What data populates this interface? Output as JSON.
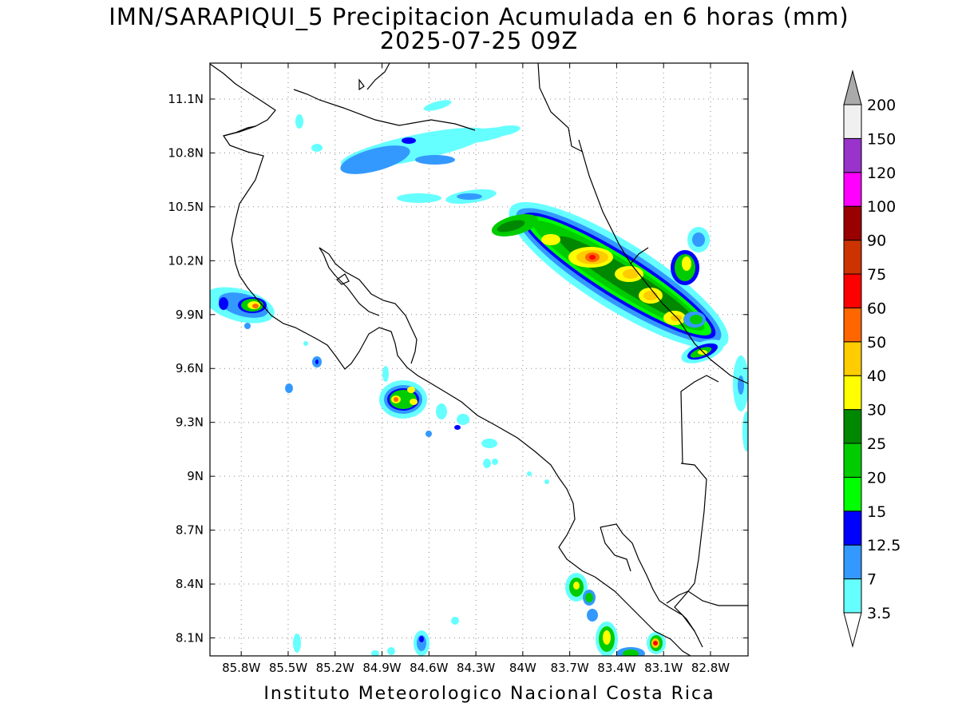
{
  "title_line1": "IMN/SARAPIQUI_5 Precipitacion Acumulada en 6 horas (mm)",
  "title_line2": "2025-07-25 09Z",
  "footer": "Instituto Meteorologico Nacional Costa Rica",
  "map": {
    "lon_range": [
      -86.0,
      -82.56
    ],
    "lat_range": [
      8.0,
      11.3
    ],
    "lat_ticks": [
      {
        "value": 11.1,
        "label": "11.1N"
      },
      {
        "value": 10.8,
        "label": "10.8N"
      },
      {
        "value": 10.5,
        "label": "10.5N"
      },
      {
        "value": 10.2,
        "label": "10.2N"
      },
      {
        "value": 9.9,
        "label": "9.9N"
      },
      {
        "value": 9.6,
        "label": "9.6N"
      },
      {
        "value": 9.3,
        "label": "9.3N"
      },
      {
        "value": 9.0,
        "label": "9N"
      },
      {
        "value": 8.7,
        "label": "8.7N"
      },
      {
        "value": 8.4,
        "label": "8.4N"
      },
      {
        "value": 8.1,
        "label": "8.1N"
      }
    ],
    "lon_ticks": [
      {
        "value": -85.8,
        "label": "85.8W"
      },
      {
        "value": -85.5,
        "label": "85.5W"
      },
      {
        "value": -85.2,
        "label": "85.2W"
      },
      {
        "value": -84.9,
        "label": "84.9W"
      },
      {
        "value": -84.6,
        "label": "84.6W"
      },
      {
        "value": -84.3,
        "label": "84.3W"
      },
      {
        "value": -84.0,
        "label": "84W"
      },
      {
        "value": -83.7,
        "label": "83.7W"
      },
      {
        "value": -83.4,
        "label": "83.4W"
      },
      {
        "value": -83.1,
        "label": "83.1W"
      },
      {
        "value": -82.8,
        "label": "82.8W"
      }
    ],
    "grid": "dotted"
  },
  "colorbar": {
    "levels": [
      {
        "label": "3.5",
        "color": "#66ffff"
      },
      {
        "label": "7",
        "color": "#3399ff"
      },
      {
        "label": "12.5",
        "color": "#0000ff"
      },
      {
        "label": "15",
        "color": "#00ff00"
      },
      {
        "label": "20",
        "color": "#00cc00"
      },
      {
        "label": "25",
        "color": "#008800"
      },
      {
        "label": "30",
        "color": "#ffff00"
      },
      {
        "label": "40",
        "color": "#ffcc00"
      },
      {
        "label": "50",
        "color": "#ff6600"
      },
      {
        "label": "60",
        "color": "#ff0000"
      },
      {
        "label": "75",
        "color": "#cc3300"
      },
      {
        "label": "90",
        "color": "#990000"
      },
      {
        "label": "100",
        "color": "#ff00ff"
      },
      {
        "label": "120",
        "color": "#9933cc"
      },
      {
        "label": "150",
        "color": "#f0f0f0"
      },
      {
        "label": "200",
        "color": "#aaaaaa"
      }
    ],
    "under_color": "#ffffff",
    "over_color": "#aaaaaa"
  }
}
